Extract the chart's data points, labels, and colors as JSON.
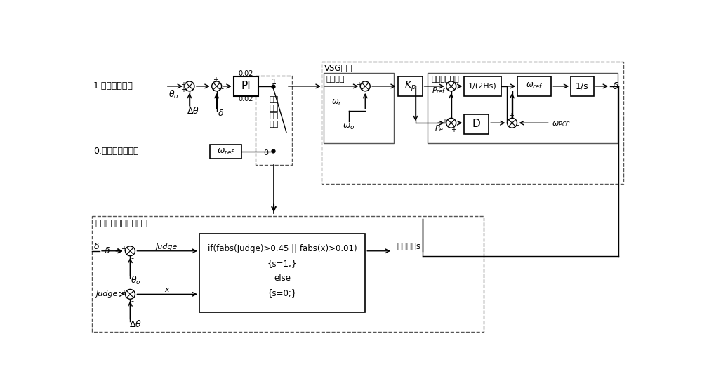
{
  "bg_color": "#ffffff",
  "fig_width": 10.0,
  "fig_height": 5.43,
  "dpi": 100,
  "labels": {
    "label_1": "1.相角差调整中",
    "label_0": "0.完成相角差调整",
    "theta_o": "$\\theta_o$",
    "delta_theta": "$\\Delta\\theta$",
    "delta_small": "$\\delta$",
    "PI": "PI",
    "pi_top": "0.02",
    "pi_bot": "0.02",
    "omega_ref_box": "$\\omega_{ref}$",
    "switch_0": "0",
    "switch_1": "1",
    "switch_text_1": "运行",
    "switch_text_2": "方式",
    "switch_text_3": "转换",
    "switch_text_4": "开关",
    "vsg_title": "VSG调速器",
    "primary_freq": "一次调频",
    "omega_r": "$\\omega_r$",
    "omega_o_label": "$\\omega_o$",
    "Kp": "$K_p$",
    "rotor_eq": "转子运动方程",
    "P_ref": "$P_{ref}$",
    "integrator1": "1/(2Hs)",
    "omega_ref2": "$\\omega_{ref}$",
    "integrator2": "1/s",
    "delta_out": "$\\delta$",
    "P_e": "$P_e$",
    "D_box": "D",
    "omega_pcc": "$\\omega_{PCC}$",
    "switch_module": "转换开关逻辑控制模块",
    "delta_bot": "$\\delta$",
    "theta_o_bot": "$\\theta_o$",
    "judge1": "Judge",
    "x_label": "x",
    "judge2": "Judge",
    "delta_theta2": "$\\Delta\\theta$",
    "logic_line1": "if(fabs(Judge)>0.45 || fabs(x)>0.01)",
    "logic_line2": "{s=1;}",
    "logic_line3": "else",
    "logic_line4": "{s=0;}",
    "switch_signal": "开关信号s"
  }
}
